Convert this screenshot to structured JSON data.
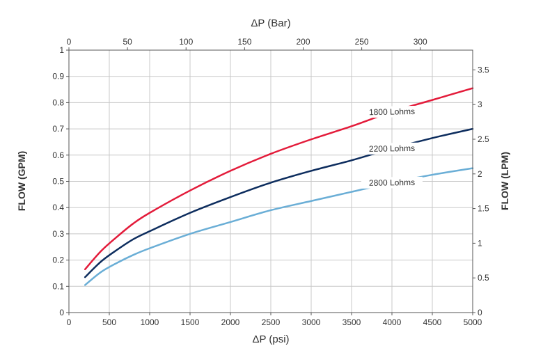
{
  "chart_data": {
    "type": "line",
    "xlabel_bottom": "ΔP (psi)",
    "xlabel_top": "ΔP (Bar)",
    "ylabel_left": "FLOW (GPM)",
    "ylabel_right": "FLOW (LPM)",
    "xlim": [
      0,
      5000
    ],
    "ylim": [
      0,
      1
    ],
    "x_top_lim": [
      0,
      344.74
    ],
    "y_right_lim": [
      0,
      3.785
    ],
    "x_ticks": [
      "0",
      "500",
      "1000",
      "1500",
      "2000",
      "2500",
      "3000",
      "3500",
      "4000",
      "4500",
      "5000"
    ],
    "x_top_ticks": [
      "0",
      "50",
      "100",
      "150",
      "200",
      "250",
      "300"
    ],
    "y_ticks": [
      "0",
      "0.1",
      "0.2",
      "0.3",
      "0.4",
      "0.5",
      "0.6",
      "0.7",
      "0.8",
      "0.9",
      "1"
    ],
    "y_right_ticks": [
      "0",
      "0.5",
      "1",
      "1.5",
      "2",
      "2.5",
      "3",
      "3.5"
    ],
    "grid": true,
    "x": [
      200,
      400,
      600,
      800,
      1000,
      1500,
      2000,
      2500,
      3000,
      3500,
      4000,
      4500,
      5000
    ],
    "series": [
      {
        "name": "1800 Lohms",
        "color": "#e31b3a",
        "values": [
          0.165,
          0.235,
          0.29,
          0.34,
          0.38,
          0.465,
          0.54,
          0.605,
          0.66,
          0.71,
          0.765,
          0.81,
          0.855
        ]
      },
      {
        "name": "2200 Lohms",
        "color": "#0d2d5e",
        "values": [
          0.135,
          0.195,
          0.24,
          0.28,
          0.31,
          0.38,
          0.44,
          0.495,
          0.54,
          0.58,
          0.625,
          0.665,
          0.7
        ]
      },
      {
        "name": "2800 Lohms",
        "color": "#6aaed6",
        "values": [
          0.105,
          0.155,
          0.19,
          0.22,
          0.245,
          0.3,
          0.345,
          0.39,
          0.425,
          0.46,
          0.495,
          0.525,
          0.55
        ]
      }
    ],
    "series_label_x": [
      4000,
      4000,
      4000
    ]
  }
}
